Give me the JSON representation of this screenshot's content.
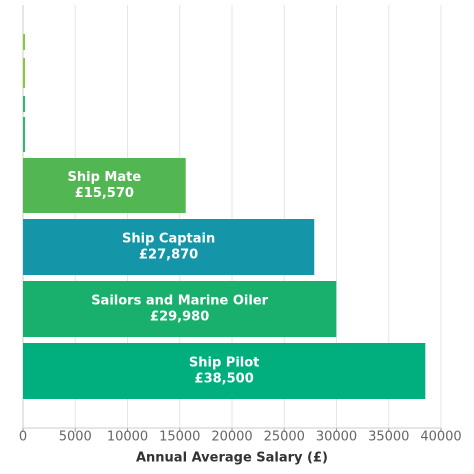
{
  "chart_data": {
    "type": "hbar",
    "xlabel": "Annual Average Salary (£)",
    "categories": [
      null,
      null,
      null,
      null,
      "Ship Mate",
      "Ship Captain",
      "Sailors and Marine Oiler",
      "Ship Pilot"
    ],
    "values": [
      100,
      100,
      200,
      200,
      15570,
      27870,
      29980,
      38500
    ],
    "value_labels": [
      null,
      null,
      null,
      null,
      "£15,570",
      "£27,870",
      "£29,980",
      "£38,500"
    ],
    "colors": [
      "#8cc63f",
      "#8cc63f",
      "#3cb371",
      "#3cb371",
      "#52b752",
      "#1596a8",
      "#18b06c",
      "#00ae7e"
    ],
    "xlim": [
      0,
      40000
    ],
    "xticks": [
      0,
      5000,
      10000,
      15000,
      20000,
      25000,
      30000,
      35000,
      40000
    ],
    "grid": true
  }
}
